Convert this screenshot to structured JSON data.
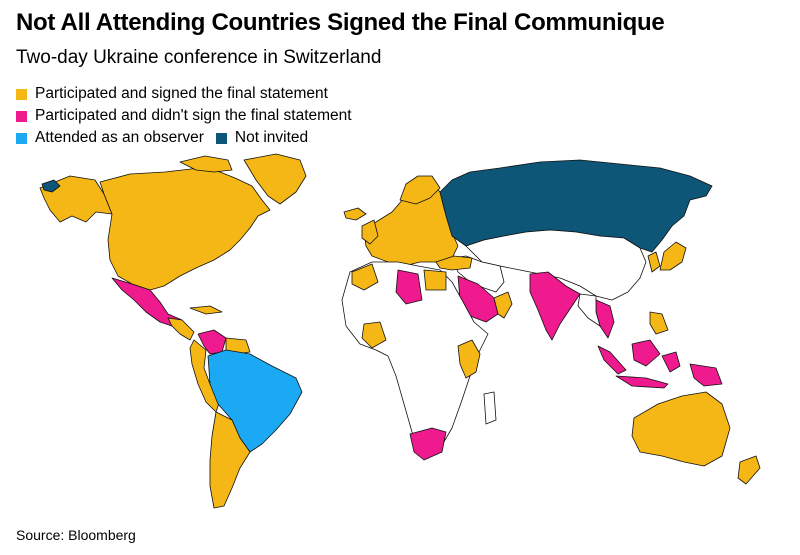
{
  "title": "Not All Attending Countries Signed the Final Communique",
  "subtitle": "Two-day Ukraine conference in Switzerland",
  "legend": [
    {
      "label": "Participated and signed the final statement",
      "color": "#F5B715"
    },
    {
      "label": "Participated and didn't sign the final statement",
      "color": "#EE1A8E"
    },
    {
      "label": "Attended as an observer",
      "color": "#1CA9F4"
    },
    {
      "label": "Not invited",
      "color": "#0E5678"
    }
  ],
  "colors": {
    "signed": "#F5B715",
    "not_signed": "#EE1A8E",
    "observer": "#1CA9F4",
    "not_invited": "#0E5678",
    "other": "#FFFFFF",
    "border": "#111111"
  },
  "source": "Source: Bloomberg"
}
